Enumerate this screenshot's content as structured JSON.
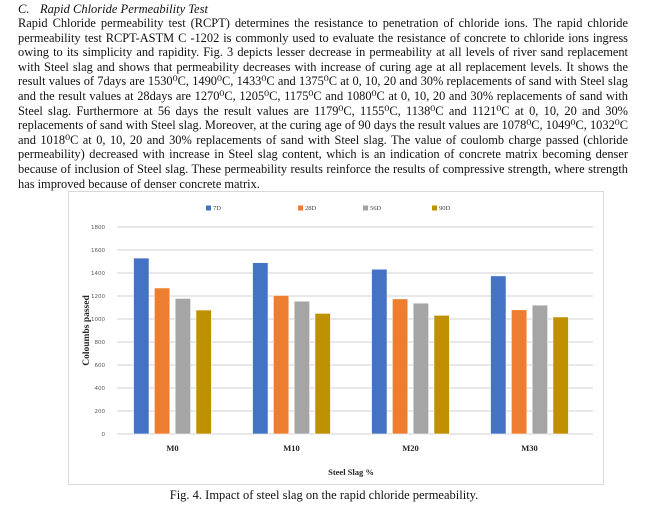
{
  "section": {
    "number": "C.",
    "title": "Rapid Chloride Permeability Test"
  },
  "paragraph": "Rapid Chloride permeability test (RCPT) determines the resistance to penetration of chloride ions. The rapid chloride permeability test RCPT-ASTM C -1202 is commonly used to evaluate the resistance of concrete to chloride ions ingress owing to its simplicity and rapidity. Fig. 3 depicts lesser decrease in permeability at all levels of river sand replacement with Steel slag and shows that permeability decreases with increase of curing age at all replacement levels. It shows the result values of 7days are 1530⁰C, 1490⁰C, 1433⁰C and 1375⁰C at 0, 10, 20 and 30% replacements of sand with Steel slag and the result values at 28days are 1270⁰C, 1205⁰C, 1175⁰C and 1080⁰C at 0, 10, 20 and 30% replacements of sand with Steel slag. Furthermore at 56 days the result values are 1179⁰C, 1155⁰C, 1138⁰C and 1121⁰C at 0, 10, 20 and 30% replacements of sand with Steel slag. Moreover, at the curing age of 90 days the result values are 1078⁰C, 1049⁰C, 1032⁰C and 1018⁰C at 0, 10, 20 and 30% replacements of sand with Steel slag. The value of coulomb charge passed (chloride permeability) decreased with increase in Steel slag content, which is an indication of concrete matrix becoming denser because of inclusion of Steel slag. These permeability results reinforce the results of compressive strength, where strength has improved because of denser concrete matrix.",
  "figure": {
    "caption": "Fig. 4. Impact of steel slag on the rapid chloride permeability."
  },
  "chart_data": {
    "type": "bar",
    "title": "",
    "xlabel": "Steel Slag %",
    "ylabel": "Coloumbs passed",
    "categories": [
      "M0",
      "M10",
      "M20",
      "M30"
    ],
    "ylim": [
      0,
      1800
    ],
    "yticks": [
      0,
      200,
      400,
      600,
      800,
      1000,
      1200,
      1400,
      1600,
      1800
    ],
    "grid": true,
    "legend": "top",
    "series": [
      {
        "name": "7D",
        "color": "#4472c4",
        "values": [
          1530,
          1490,
          1433,
          1375
        ]
      },
      {
        "name": "28D",
        "color": "#ed7d31",
        "values": [
          1270,
          1205,
          1175,
          1080
        ]
      },
      {
        "name": "56D",
        "color": "#a5a5a5",
        "values": [
          1179,
          1155,
          1138,
          1121
        ]
      },
      {
        "name": "90D",
        "color": "#bf9000",
        "values": [
          1078,
          1049,
          1032,
          1018
        ]
      }
    ]
  }
}
